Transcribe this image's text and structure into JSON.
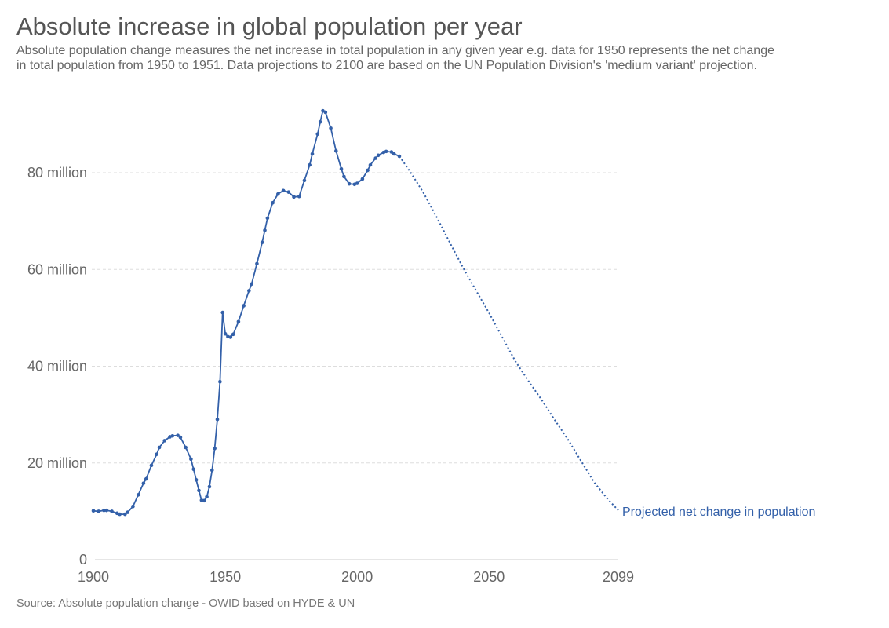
{
  "header": {
    "title": "Absolute increase in global population per year",
    "subtitle": "Absolute population change measures the net increase in total population in any given year e.g. data for 1950 represents the net change in total population from 1950 to 1951. Data projections to 2100 are based on the UN Population Division's 'medium variant' projection."
  },
  "footer": {
    "source": "Source: Absolute population change - OWID based on HYDE & UN"
  },
  "chart_data": {
    "type": "line",
    "title": "Absolute increase in global population per year",
    "xlabel": "",
    "ylabel": "",
    "xlim": [
      1900,
      2099
    ],
    "ylim": [
      0,
      95000000
    ],
    "grid": true,
    "x_ticks": [
      {
        "value": 1900,
        "label": "1900"
      },
      {
        "value": 1950,
        "label": "1950"
      },
      {
        "value": 2000,
        "label": "2000"
      },
      {
        "value": 2050,
        "label": "2050"
      },
      {
        "value": 2099,
        "label": "2099"
      }
    ],
    "y_ticks": [
      {
        "value": 0,
        "label": "0"
      },
      {
        "value": 20000000,
        "label": "20 million"
      },
      {
        "value": 40000000,
        "label": "40 million"
      },
      {
        "value": 60000000,
        "label": "60 million"
      },
      {
        "value": 80000000,
        "label": "80 million"
      }
    ],
    "color": "#3360a9",
    "series": [
      {
        "style": "solid-with-markers",
        "x": [
          1900,
          1902,
          1904,
          1905,
          1907,
          1909,
          1910,
          1912,
          1913,
          1915,
          1917,
          1919,
          1920,
          1922,
          1924,
          1925,
          1927,
          1929,
          1930,
          1932,
          1933,
          1935,
          1937,
          1938,
          1939,
          1940,
          1941,
          1942,
          1943,
          1944,
          1945,
          1946,
          1947,
          1948,
          1949,
          1950,
          1951,
          1952,
          1953,
          1955,
          1957,
          1959,
          1960,
          1962,
          1964,
          1965,
          1966,
          1968,
          1970,
          1972,
          1974,
          1976,
          1978,
          1980,
          1982,
          1983,
          1985,
          1986,
          1987,
          1988,
          1990,
          1992,
          1994,
          1995,
          1997,
          1999,
          2000,
          2002,
          2004,
          2005,
          2007,
          2008,
          2010,
          2011,
          2013,
          2014,
          2016
        ],
        "values": [
          10100000,
          10000000,
          10200000,
          10200000,
          10000000,
          9600000,
          9400000,
          9400000,
          9800000,
          11000000,
          13400000,
          15800000,
          16700000,
          19500000,
          21800000,
          23200000,
          24600000,
          25400000,
          25600000,
          25700000,
          25300000,
          23200000,
          20800000,
          18700000,
          16500000,
          14300000,
          12300000,
          12200000,
          13000000,
          15100000,
          18500000,
          23000000,
          29000000,
          36800000,
          51100000,
          46700000,
          46100000,
          46000000,
          46600000,
          49200000,
          52500000,
          55600000,
          57000000,
          61200000,
          65600000,
          68100000,
          70600000,
          73800000,
          75600000,
          76300000,
          76000000,
          75000000,
          75100000,
          78400000,
          81600000,
          83900000,
          88000000,
          90500000,
          92800000,
          92500000,
          89200000,
          84500000,
          80800000,
          79200000,
          77700000,
          77600000,
          77800000,
          78700000,
          80500000,
          81600000,
          83000000,
          83600000,
          84200000,
          84400000,
          84300000,
          83900000,
          83400000
        ]
      },
      {
        "name": "Projected net change in population",
        "style": "dotted",
        "x": [
          2016,
          2020,
          2025,
          2030,
          2035,
          2040,
          2045,
          2050,
          2055,
          2060,
          2065,
          2070,
          2075,
          2080,
          2085,
          2090,
          2095,
          2099
        ],
        "values": [
          83400000,
          80300000,
          76000000,
          71000000,
          65700000,
          60500000,
          55700000,
          51000000,
          46000000,
          41000000,
          36900000,
          33000000,
          28800000,
          24800000,
          20300000,
          15900000,
          12500000,
          10200000
        ]
      }
    ]
  }
}
